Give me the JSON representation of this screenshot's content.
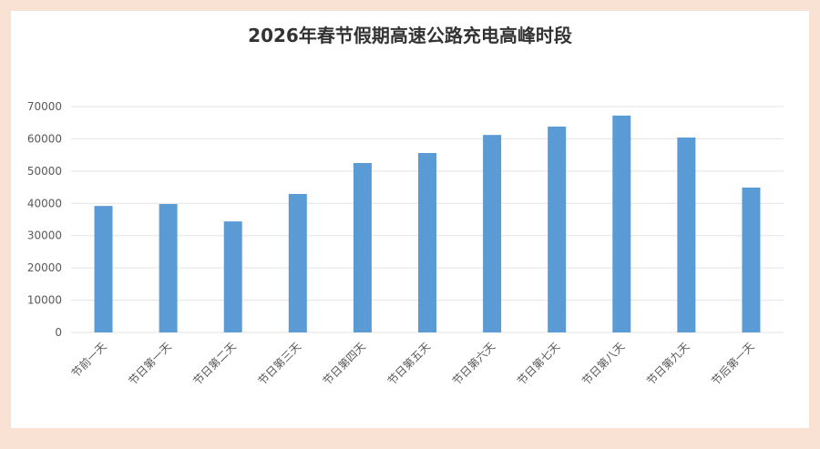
{
  "chart_data": {
    "type": "bar",
    "title": "2026年春节假期高速公路充电高峰时段",
    "categories": [
      "节前一天",
      "节日第一天",
      "节日第二天",
      "节日第三天",
      "节日第四天",
      "节日第五天",
      "节日第六天",
      "节日第七天",
      "节日第八天",
      "节日第九天",
      "节后第一天"
    ],
    "values": [
      39200,
      39800,
      34400,
      42900,
      52500,
      55600,
      61200,
      63800,
      67200,
      60400,
      44900
    ],
    "color": "#5b9bd5",
    "ylim": [
      0,
      70000
    ],
    "yticks": [
      0,
      10000,
      20000,
      30000,
      40000,
      50000,
      60000,
      70000
    ],
    "grid": true
  }
}
